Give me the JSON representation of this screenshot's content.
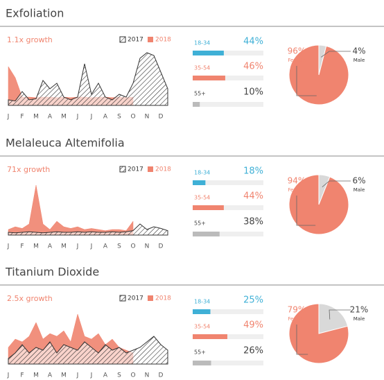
{
  "chart_data": [
    {
      "type": "area",
      "title": "Exfoliation",
      "subtitle": "1.1x growth",
      "categories": [
        "J",
        null,
        "F",
        null,
        "M",
        null,
        "A",
        null,
        "M",
        null,
        "J",
        null,
        "J",
        null,
        "A",
        null,
        "S",
        null,
        "O",
        null,
        "N",
        null,
        "D",
        null
      ],
      "ylim": [
        0,
        100
      ],
      "series": [
        {
          "name": "2017",
          "color": "#333333",
          "pattern": "hatch",
          "values": [
            10,
            8,
            25,
            10,
            12,
            45,
            30,
            40,
            15,
            10,
            15,
            75,
            20,
            40,
            15,
            10,
            20,
            15,
            40,
            85,
            95,
            90,
            60,
            30
          ]
        },
        {
          "name": "2018",
          "color": "#f0846f",
          "values": [
            70,
            50,
            15,
            15,
            14,
            15,
            15,
            14,
            15,
            14,
            15,
            15,
            14,
            15,
            15,
            14,
            15,
            14,
            15,
            null,
            null,
            null,
            null,
            null
          ]
        }
      ]
    },
    {
      "type": "bar",
      "categories": [
        "18-34",
        "35-54",
        "55+"
      ],
      "values": [
        44,
        46,
        10
      ],
      "value_labels": [
        "44%",
        "46%",
        "10%"
      ],
      "colors": [
        "#3fb0d6",
        "#f0846f",
        "#bbbbbb"
      ],
      "xlim": [
        0,
        100
      ]
    },
    {
      "type": "pie",
      "categories": [
        "Female",
        "Male"
      ],
      "values": [
        96,
        4
      ],
      "value_labels": [
        "96%",
        "4%"
      ],
      "colors": [
        "#f0846f",
        "#d9d9d9"
      ]
    },
    {
      "type": "area",
      "title": "Melaleuca Altemifolia",
      "subtitle": "71x growth",
      "categories": [
        "J",
        null,
        "F",
        null,
        "M",
        null,
        "A",
        null,
        "M",
        null,
        "J",
        null,
        "J",
        null,
        "A",
        null,
        "S",
        null,
        "O",
        null,
        "N",
        null,
        "D",
        null
      ],
      "ylim": [
        0,
        100
      ],
      "series": [
        {
          "name": "2017",
          "color": "#333333",
          "pattern": "hatch",
          "values": [
            5,
            4,
            5,
            6,
            5,
            4,
            5,
            6,
            5,
            5,
            6,
            5,
            6,
            5,
            5,
            6,
            5,
            6,
            8,
            20,
            10,
            15,
            12,
            8
          ]
        },
        {
          "name": "2018",
          "color": "#f0846f",
          "values": [
            10,
            15,
            12,
            20,
            90,
            20,
            10,
            25,
            15,
            12,
            15,
            10,
            12,
            10,
            8,
            10,
            10,
            8,
            25,
            null,
            null,
            null,
            null,
            null
          ]
        }
      ]
    },
    {
      "type": "bar",
      "categories": [
        "18-34",
        "35-54",
        "55+"
      ],
      "values": [
        18,
        44,
        38
      ],
      "value_labels": [
        "18%",
        "44%",
        "38%"
      ],
      "colors": [
        "#3fb0d6",
        "#f0846f",
        "#bbbbbb"
      ],
      "xlim": [
        0,
        100
      ]
    },
    {
      "type": "pie",
      "categories": [
        "Female",
        "Male"
      ],
      "values": [
        94,
        6
      ],
      "value_labels": [
        "94%",
        "6%"
      ],
      "colors": [
        "#f0846f",
        "#d9d9d9"
      ]
    },
    {
      "type": "area",
      "title": "Titanium Dioxide",
      "subtitle": "2.5x growth",
      "categories": [
        "J",
        null,
        "F",
        null,
        "M",
        null,
        "A",
        null,
        "M",
        null,
        "J",
        null,
        "J",
        null,
        "A",
        null,
        "S",
        null,
        "O",
        null,
        "N",
        null,
        "D",
        null
      ],
      "ylim": [
        0,
        100
      ],
      "series": [
        {
          "name": "2017",
          "color": "#333333",
          "pattern": "hatch",
          "values": [
            10,
            20,
            35,
            20,
            30,
            25,
            40,
            20,
            35,
            30,
            25,
            40,
            30,
            20,
            35,
            25,
            30,
            20,
            25,
            30,
            40,
            50,
            35,
            25
          ]
        },
        {
          "name": "2018",
          "color": "#f0846f",
          "values": [
            30,
            45,
            40,
            50,
            75,
            45,
            55,
            50,
            60,
            40,
            90,
            50,
            45,
            55,
            35,
            45,
            30,
            25,
            20,
            null,
            null,
            null,
            null,
            null
          ]
        }
      ]
    },
    {
      "type": "bar",
      "categories": [
        "18-34",
        "35-54",
        "55+"
      ],
      "values": [
        25,
        49,
        26
      ],
      "value_labels": [
        "25%",
        "49%",
        "26%"
      ],
      "colors": [
        "#3fb0d6",
        "#f0846f",
        "#bbbbbb"
      ],
      "xlim": [
        0,
        100
      ]
    },
    {
      "type": "pie",
      "categories": [
        "Female",
        "Male"
      ],
      "values": [
        79,
        21
      ],
      "value_labels": [
        "79%",
        "21%"
      ],
      "colors": [
        "#f0846f",
        "#d9d9d9"
      ]
    }
  ]
}
